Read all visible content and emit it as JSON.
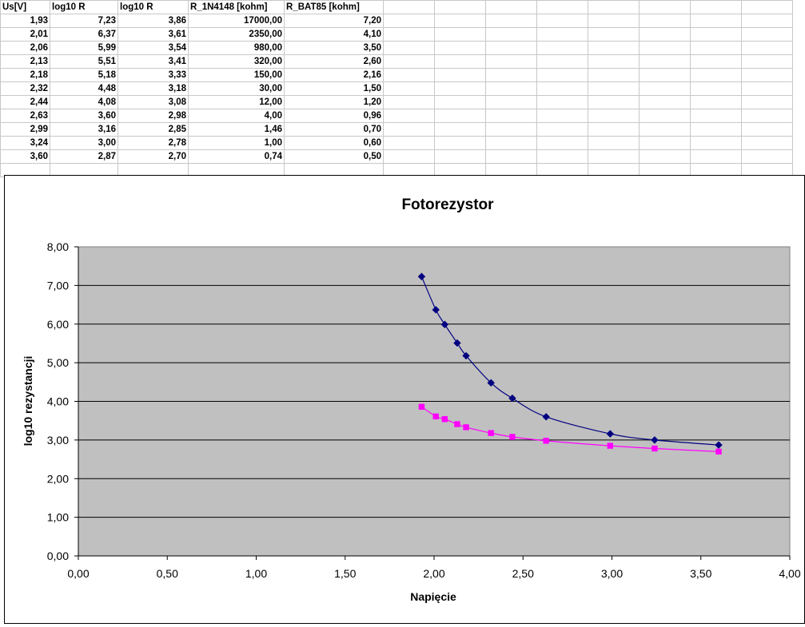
{
  "table": {
    "headers": [
      "Us[V]",
      "log10 R",
      "log10 R",
      "R_1N4148 [kohm]",
      "R_BAT85 [kohm]"
    ],
    "rows": [
      [
        "1,93",
        "7,23",
        "3,86",
        "17000,00",
        "7,20"
      ],
      [
        "2,01",
        "6,37",
        "3,61",
        "2350,00",
        "4,10"
      ],
      [
        "2,06",
        "5,99",
        "3,54",
        "980,00",
        "3,50"
      ],
      [
        "2,13",
        "5,51",
        "3,41",
        "320,00",
        "2,60"
      ],
      [
        "2,18",
        "5,18",
        "3,33",
        "150,00",
        "2,16"
      ],
      [
        "2,32",
        "4,48",
        "3,18",
        "30,00",
        "1,50"
      ],
      [
        "2,44",
        "4,08",
        "3,08",
        "12,00",
        "1,20"
      ],
      [
        "2,63",
        "3,60",
        "2,98",
        "4,00",
        "0,96"
      ],
      [
        "2,99",
        "3,16",
        "2,85",
        "1,46",
        "0,70"
      ],
      [
        "3,24",
        "3,00",
        "2,78",
        "1,00",
        "0,60"
      ],
      [
        "3,60",
        "2,87",
        "2,70",
        "0,74",
        "0,50"
      ]
    ]
  },
  "chart_data": {
    "type": "scatter",
    "title": "Fotorezystor",
    "xlabel": "Napięcie",
    "ylabel": "log10 rezystancji",
    "xlim": [
      0,
      4
    ],
    "ylim": [
      0,
      8
    ],
    "xticks": [
      "0,00",
      "0,50",
      "1,00",
      "1,50",
      "2,00",
      "2,50",
      "3,00",
      "3,50",
      "4,00"
    ],
    "yticks": [
      "0,00",
      "1,00",
      "2,00",
      "3,00",
      "4,00",
      "5,00",
      "6,00",
      "7,00",
      "8,00"
    ],
    "grid": "horizontal",
    "plot_background": "#c0c0c0",
    "series": [
      {
        "color": "#000080",
        "marker": "diamond",
        "x": [
          1.93,
          2.01,
          2.06,
          2.13,
          2.18,
          2.32,
          2.44,
          2.63,
          2.99,
          3.24,
          3.6
        ],
        "y": [
          7.23,
          6.37,
          5.99,
          5.51,
          5.18,
          4.48,
          4.08,
          3.6,
          3.16,
          3.0,
          2.87
        ]
      },
      {
        "color": "#ff00ff",
        "marker": "square",
        "x": [
          1.93,
          2.01,
          2.06,
          2.13,
          2.18,
          2.32,
          2.44,
          2.63,
          2.99,
          3.24,
          3.6
        ],
        "y": [
          3.86,
          3.61,
          3.54,
          3.41,
          3.33,
          3.18,
          3.08,
          2.98,
          2.85,
          2.78,
          2.7
        ]
      }
    ]
  }
}
